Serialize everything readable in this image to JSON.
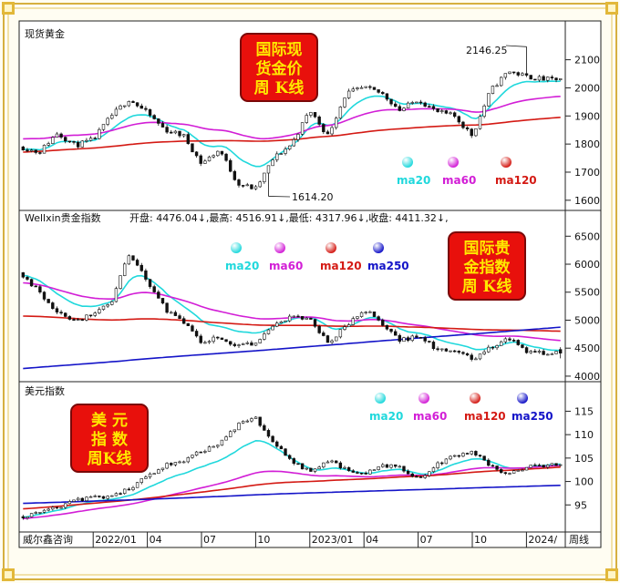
{
  "colors": {
    "ma20": "#20d8dc",
    "ma60": "#d21ed6",
    "ma120": "#d41a14",
    "ma250": "#1414c8",
    "frame": "#d6b040",
    "badge": "#e8100c",
    "badge_text": "#ffe800",
    "candle_up": "#ffffff",
    "candle_down": "#111111"
  },
  "footer": {
    "source": "威尔鑫咨询",
    "period": "周线",
    "date_ticks": [
      "2022/01",
      "04",
      "07",
      "10",
      "2023/01",
      "04",
      "07",
      "10",
      "2024/"
    ]
  },
  "panels": [
    {
      "id": "gold",
      "title": "现货黄金",
      "badge": [
        "国际现",
        "货金价",
        "周 K线"
      ],
      "ticks": [
        1600,
        1700,
        1800,
        1900,
        2000,
        2100
      ],
      "legend": [
        "ma20",
        "ma60",
        "ma120"
      ],
      "annotations": {
        "high": "2146.25",
        "low": "1614.20"
      }
    },
    {
      "id": "index",
      "title": "Wellxin贵金指数",
      "info": "开盘: 4476.04↓,最高: 4516.91↓,最低: 4317.96↓,收盘: 4411.32↓,",
      "badge": [
        "国际贵",
        "金指数",
        "周 K线"
      ],
      "ticks": [
        4000,
        4500,
        5000,
        5500,
        6000,
        6500
      ],
      "legend": [
        "ma20",
        "ma60",
        "ma120",
        "ma250"
      ]
    },
    {
      "id": "usd",
      "title": "美元指数",
      "badge": [
        "美  元",
        "指  数",
        "周K线"
      ],
      "ticks": [
        95,
        100,
        105,
        110,
        115
      ],
      "legend": [
        "ma20",
        "ma60",
        "ma120",
        "ma250"
      ]
    }
  ],
  "chart_data": [
    {
      "type": "candlestick",
      "title": "现货黄金",
      "ylim": [
        1580,
        2170
      ],
      "x_ticks": [
        "2022/01",
        "04",
        "07",
        "10",
        "2023/01",
        "04",
        "07",
        "10",
        "2024/"
      ],
      "close_anchors": [
        {
          "x": "2021/09",
          "y": 1790
        },
        {
          "x": "2021/10",
          "y": 1770
        },
        {
          "x": "2021/11",
          "y": 1840
        },
        {
          "x": "2021/12",
          "y": 1795
        },
        {
          "x": "2022/01",
          "y": 1815
        },
        {
          "x": "2022/02",
          "y": 1900
        },
        {
          "x": "2022/03",
          "y": 1960
        },
        {
          "x": "2022/04",
          "y": 1910
        },
        {
          "x": "2022/05",
          "y": 1850
        },
        {
          "x": "2022/06",
          "y": 1830
        },
        {
          "x": "2022/07",
          "y": 1730
        },
        {
          "x": "2022/08",
          "y": 1780
        },
        {
          "x": "2022/09",
          "y": 1660
        },
        {
          "x": "2022/10",
          "y": 1640
        },
        {
          "x": "2022/11",
          "y": 1750
        },
        {
          "x": "2022/12",
          "y": 1800
        },
        {
          "x": "2023/01",
          "y": 1920
        },
        {
          "x": "2023/02",
          "y": 1830
        },
        {
          "x": "2023/03",
          "y": 1980
        },
        {
          "x": "2023/04",
          "y": 2000
        },
        {
          "x": "2023/05",
          "y": 1980
        },
        {
          "x": "2023/06",
          "y": 1920
        },
        {
          "x": "2023/07",
          "y": 1960
        },
        {
          "x": "2023/08",
          "y": 1915
        },
        {
          "x": "2023/09",
          "y": 1900
        },
        {
          "x": "2023/10",
          "y": 1830
        },
        {
          "x": "2023/11",
          "y": 1990
        },
        {
          "x": "2023/12",
          "y": 2060
        },
        {
          "x": "2024/01",
          "y": 2040
        },
        {
          "x": "2024/02",
          "y": 2030
        }
      ],
      "high": 2146.25,
      "low": 1614.2,
      "ma_levels": {
        "ma20": {
          "start": 1790,
          "end": 1995
        },
        "ma60": {
          "start": 1845,
          "end": 1940
        },
        "ma120": {
          "start": 1770,
          "end": 1880
        }
      }
    },
    {
      "type": "candlestick",
      "title": "Wellxin贵金指数",
      "ylim": [
        3950,
        6700
      ],
      "x_ticks": [
        "2022/01",
        "04",
        "07",
        "10",
        "2023/01",
        "04",
        "07",
        "10",
        "2024/"
      ],
      "last_week": {
        "open": 4476.04,
        "high": 4516.91,
        "low": 4317.96,
        "close": 4411.32
      },
      "close_anchors": [
        {
          "x": "2021/09",
          "y": 5850
        },
        {
          "x": "2021/11",
          "y": 5150
        },
        {
          "x": "2021/12",
          "y": 5000
        },
        {
          "x": "2022/01",
          "y": 5100
        },
        {
          "x": "2022/02",
          "y": 5300
        },
        {
          "x": "2022/03",
          "y": 6200
        },
        {
          "x": "2022/04",
          "y": 5700
        },
        {
          "x": "2022/05",
          "y": 5200
        },
        {
          "x": "2022/06",
          "y": 4950
        },
        {
          "x": "2022/07",
          "y": 4600
        },
        {
          "x": "2022/08",
          "y": 4700
        },
        {
          "x": "2022/09",
          "y": 4550
        },
        {
          "x": "2022/10",
          "y": 4600
        },
        {
          "x": "2022/11",
          "y": 4900
        },
        {
          "x": "2022/12",
          "y": 5050
        },
        {
          "x": "2023/01",
          "y": 5000
        },
        {
          "x": "2023/02",
          "y": 4600
        },
        {
          "x": "2023/03",
          "y": 4900
        },
        {
          "x": "2023/04",
          "y": 5200
        },
        {
          "x": "2023/05",
          "y": 4950
        },
        {
          "x": "2023/06",
          "y": 4650
        },
        {
          "x": "2023/07",
          "y": 4700
        },
        {
          "x": "2023/08",
          "y": 4500
        },
        {
          "x": "2023/09",
          "y": 4450
        },
        {
          "x": "2023/10",
          "y": 4300
        },
        {
          "x": "2023/11",
          "y": 4500
        },
        {
          "x": "2023/12",
          "y": 4700
        },
        {
          "x": "2024/01",
          "y": 4450
        },
        {
          "x": "2024/02",
          "y": 4411
        }
      ],
      "ma_levels": {
        "ma20": {
          "start": 5900,
          "end": 4550
        },
        "ma60": {
          "start": 5600,
          "end": 4750
        },
        "ma120": {
          "start": 4950,
          "end": 4850
        },
        "ma250": {
          "start": 4050,
          "end": 4880
        }
      }
    },
    {
      "type": "candlestick",
      "title": "美元指数",
      "ylim": [
        90,
        118
      ],
      "x_ticks": [
        "2022/01",
        "04",
        "07",
        "10",
        "2023/01",
        "04",
        "07",
        "10",
        "2024/"
      ],
      "close_anchors": [
        {
          "x": "2021/09",
          "y": 92.5
        },
        {
          "x": "2021/10",
          "y": 93.5
        },
        {
          "x": "2021/11",
          "y": 94.5
        },
        {
          "x": "2021/12",
          "y": 96.0
        },
        {
          "x": "2022/01",
          "y": 96.5
        },
        {
          "x": "2022/02",
          "y": 97.0
        },
        {
          "x": "2022/03",
          "y": 98.5
        },
        {
          "x": "2022/04",
          "y": 101.0
        },
        {
          "x": "2022/05",
          "y": 103.5
        },
        {
          "x": "2022/06",
          "y": 104.5
        },
        {
          "x": "2022/07",
          "y": 106.5
        },
        {
          "x": "2022/08",
          "y": 108.0
        },
        {
          "x": "2022/09",
          "y": 112.0
        },
        {
          "x": "2022/10",
          "y": 113.5
        },
        {
          "x": "2022/11",
          "y": 108.0
        },
        {
          "x": "2022/12",
          "y": 104.5
        },
        {
          "x": "2023/01",
          "y": 102.0
        },
        {
          "x": "2023/02",
          "y": 104.5
        },
        {
          "x": "2023/03",
          "y": 102.5
        },
        {
          "x": "2023/04",
          "y": 101.5
        },
        {
          "x": "2023/05",
          "y": 103.5
        },
        {
          "x": "2023/06",
          "y": 103.0
        },
        {
          "x": "2023/07",
          "y": 100.5
        },
        {
          "x": "2023/08",
          "y": 103.5
        },
        {
          "x": "2023/09",
          "y": 105.5
        },
        {
          "x": "2023/10",
          "y": 106.5
        },
        {
          "x": "2023/11",
          "y": 103.5
        },
        {
          "x": "2023/12",
          "y": 101.5
        },
        {
          "x": "2024/01",
          "y": 103.0
        },
        {
          "x": "2024/02",
          "y": 103.5
        }
      ],
      "ma_levels": {
        "ma20": {
          "start": 93.0,
          "end": 104.5
        },
        "ma60": {
          "start": 92.0,
          "end": 103.5
        },
        "ma120": {
          "start": 94.5,
          "end": 103.0
        },
        "ma250": {
          "start": 95.5,
          "end": 99.0
        }
      }
    }
  ]
}
